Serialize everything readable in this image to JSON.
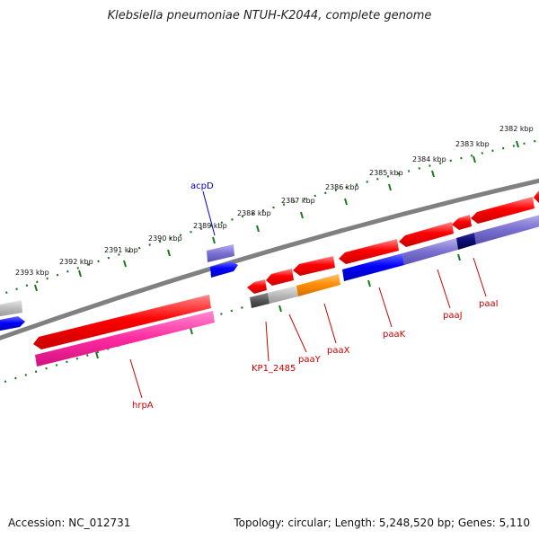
{
  "title": "Klebsiella pneumoniae NTUH-K2044, complete genome",
  "footer": {
    "accession": "Accession: NC_012731",
    "summary": "Topology: circular; Length: 5,248,520 bp; Genes: 5,110"
  },
  "scale": {
    "unit": "kbp",
    "ticks": [
      {
        "kbp": 2393,
        "label": "2393 kbp"
      },
      {
        "kbp": 2392,
        "label": "2392 kbp"
      },
      {
        "kbp": 2391,
        "label": "2391 kbp"
      },
      {
        "kbp": 2390,
        "label": "2390 kbp"
      },
      {
        "kbp": 2389,
        "label": "2389 kbp"
      },
      {
        "kbp": 2388,
        "label": "2388 kbp"
      },
      {
        "kbp": 2387,
        "label": "2387 kbp"
      },
      {
        "kbp": 2386,
        "label": "2386 kbp"
      },
      {
        "kbp": 2385,
        "label": "2385 kbp"
      },
      {
        "kbp": 2384,
        "label": "2384 kbp"
      },
      {
        "kbp": 2383,
        "label": "2383 kbp"
      },
      {
        "kbp": 2382,
        "label": "2382 kbp"
      }
    ]
  },
  "colors": {
    "backbone": "#808080",
    "tick_dots": "#1a7a1a",
    "gene_forward": "#ff0000",
    "gene_reverse": "#ff0000",
    "cds_forward_blue": "#0000ff",
    "cds_lavender": "#7a70d0",
    "cds_pink": "#ff2aa0",
    "cds_orange": "#ff8c00",
    "cds_gray": "#bbbbbb",
    "cds_dark": "#555555",
    "cds_navy": "#0a0a70",
    "label_red": "#cc0000",
    "label_blue": "#0000cc"
  },
  "gene_labels": [
    {
      "name": "acpD",
      "color": "blue"
    },
    {
      "name": "hrpA",
      "color": "red"
    },
    {
      "name": "KP1_2485",
      "color": "red"
    },
    {
      "name": "paaY",
      "color": "red"
    },
    {
      "name": "paaX",
      "color": "red"
    },
    {
      "name": "paaK",
      "color": "red"
    },
    {
      "name": "paaJ",
      "color": "red"
    },
    {
      "name": "paaI",
      "color": "red"
    }
  ]
}
